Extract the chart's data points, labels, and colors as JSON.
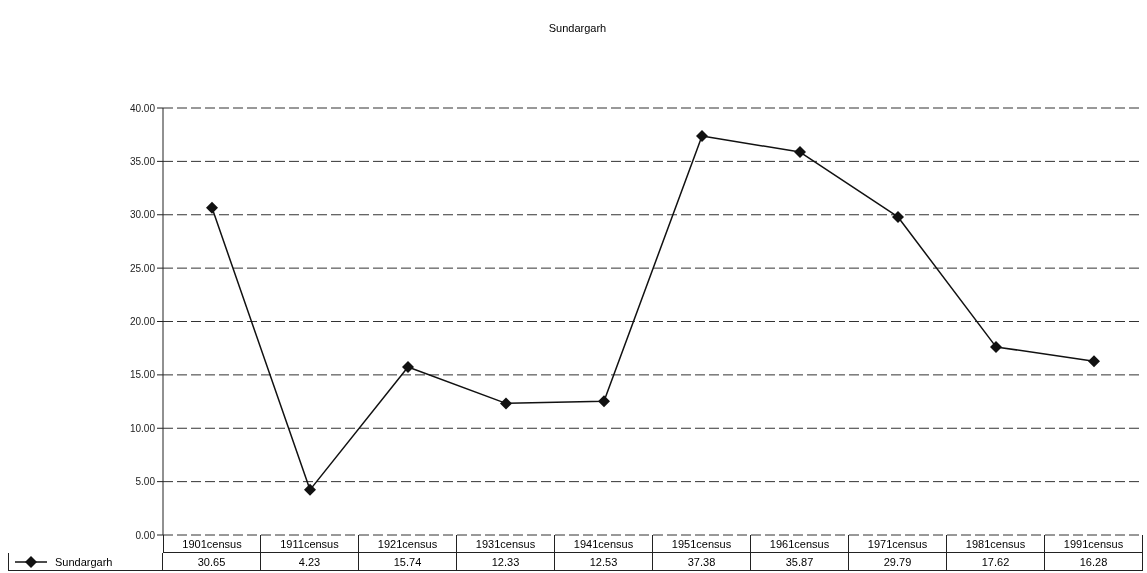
{
  "chart_data": {
    "type": "line",
    "title": "Sundargarh",
    "categories": [
      "1901census",
      "1911census",
      "1921census",
      "1931census",
      "1941census",
      "1951census",
      "1961census",
      "1971census",
      "1981census",
      "1991census"
    ],
    "series": [
      {
        "name": "Sundargarh",
        "color": "#111111",
        "values": [
          30.65,
          4.23,
          15.74,
          12.33,
          12.53,
          37.38,
          35.87,
          29.79,
          17.62,
          16.28
        ]
      }
    ],
    "ylim": [
      0,
      40
    ],
    "yticks": [
      {
        "value": 0,
        "label": "0.00"
      },
      {
        "value": 5,
        "label": "5.00"
      },
      {
        "value": 10,
        "label": "10.00"
      },
      {
        "value": 15,
        "label": "15.00"
      },
      {
        "value": 20,
        "label": "20.00"
      },
      {
        "value": 25,
        "label": "25.00"
      },
      {
        "value": 30,
        "label": "30.00"
      },
      {
        "value": 35,
        "label": "35.00"
      },
      {
        "value": 40,
        "label": "40.00"
      }
    ],
    "grid": "y",
    "legend": "bottom left",
    "marker": "diamond",
    "line_style": "solid",
    "data_labels": true
  }
}
